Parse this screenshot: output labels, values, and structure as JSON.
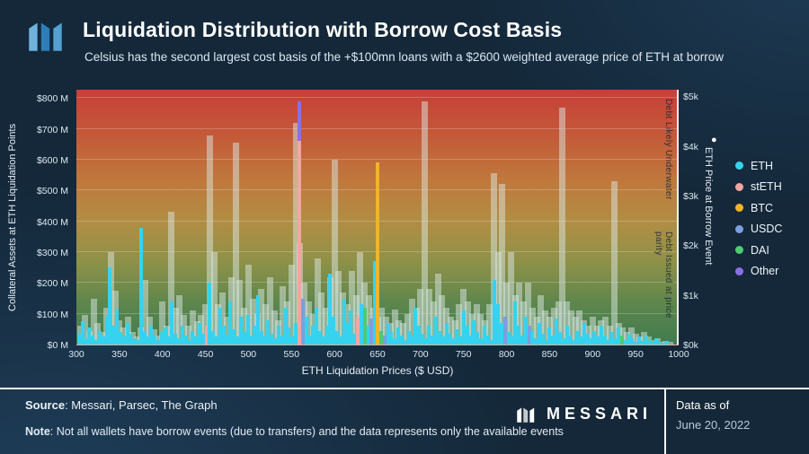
{
  "header": {
    "title": "Liquidation Distribution with Borrow Cost Basis",
    "subtitle": "Celsius has the second largest cost basis of the +$100mn loans with a $2600 weighted average price of ETH at borrow"
  },
  "chart_data": {
    "type": "bar",
    "xlabel": "ETH Liquidation Prices ($ USD)",
    "ylabel_left": "Collateral Assets at ETH Liquidation Points",
    "ylabel_right": "ETH Price at Borrow Event",
    "x_range": [
      300,
      1000
    ],
    "x_ticks": [
      300,
      350,
      400,
      450,
      500,
      550,
      600,
      650,
      700,
      750,
      800,
      850,
      900,
      950,
      1000
    ],
    "y_ticks_left": [
      "$0 M",
      "$100 M",
      "$200 M",
      "$300 M",
      "$400 M",
      "$500 M",
      "$600 M",
      "$700 M",
      "$800 M"
    ],
    "y_ticks_right": [
      "$0k",
      "$1k",
      "$2k",
      "$3k",
      "$4k",
      "$5k"
    ],
    "ylim_left": [
      0,
      830
    ],
    "ylim_right": [
      0,
      5.15
    ],
    "grid": true,
    "legend_position": "right",
    "legend_marker": "●",
    "annotations": {
      "top": "Debt Likely Underwater",
      "bottom": "Debt Issued at price parity"
    },
    "gradient": [
      "#c83f38",
      "#c0773c",
      "#b18e44",
      "#8d9148",
      "#417b4e"
    ],
    "series_colors": {
      "ETH": "#35d3ef",
      "stETH": "#f2a6a2",
      "BTC": "#f0b429",
      "USDC": "#7b9fe0",
      "DAI": "#4ecb71",
      "Other": "#8b6fe8"
    },
    "legend": [
      "ETH",
      "stETH",
      "BTC",
      "USDC",
      "DAI",
      "Other"
    ],
    "collateral_bars": [
      [
        305,
        60
      ],
      [
        310,
        95
      ],
      [
        315,
        45
      ],
      [
        320,
        150
      ],
      [
        325,
        70
      ],
      [
        330,
        40
      ],
      [
        335,
        120
      ],
      [
        340,
        300
      ],
      [
        345,
        175
      ],
      [
        350,
        80
      ],
      [
        355,
        55
      ],
      [
        360,
        90
      ],
      [
        365,
        40
      ],
      [
        370,
        25
      ],
      [
        375,
        55
      ],
      [
        380,
        210
      ],
      [
        385,
        90
      ],
      [
        390,
        50
      ],
      [
        395,
        30
      ],
      [
        400,
        140
      ],
      [
        405,
        60
      ],
      [
        410,
        430
      ],
      [
        415,
        120
      ],
      [
        420,
        160
      ],
      [
        425,
        95
      ],
      [
        430,
        60
      ],
      [
        435,
        110
      ],
      [
        440,
        75
      ],
      [
        445,
        95
      ],
      [
        450,
        130
      ],
      [
        455,
        680
      ],
      [
        460,
        300
      ],
      [
        465,
        130
      ],
      [
        470,
        170
      ],
      [
        475,
        90
      ],
      [
        480,
        220
      ],
      [
        485,
        655
      ],
      [
        490,
        210
      ],
      [
        495,
        120
      ],
      [
        500,
        260
      ],
      [
        505,
        150
      ],
      [
        510,
        100
      ],
      [
        515,
        180
      ],
      [
        520,
        130
      ],
      [
        525,
        220
      ],
      [
        530,
        110
      ],
      [
        535,
        80
      ],
      [
        540,
        190
      ],
      [
        545,
        140
      ],
      [
        550,
        260
      ],
      [
        555,
        720
      ],
      [
        560,
        330
      ],
      [
        565,
        200
      ],
      [
        570,
        140
      ],
      [
        575,
        100
      ],
      [
        580,
        280
      ],
      [
        585,
        170
      ],
      [
        590,
        120
      ],
      [
        595,
        220
      ],
      [
        600,
        600
      ],
      [
        605,
        240
      ],
      [
        610,
        170
      ],
      [
        615,
        130
      ],
      [
        620,
        240
      ],
      [
        625,
        160
      ],
      [
        630,
        300
      ],
      [
        635,
        200
      ],
      [
        640,
        160
      ],
      [
        645,
        120
      ],
      [
        650,
        90
      ],
      [
        655,
        120
      ],
      [
        660,
        90
      ],
      [
        665,
        70
      ],
      [
        670,
        115
      ],
      [
        675,
        80
      ],
      [
        680,
        70
      ],
      [
        685,
        100
      ],
      [
        690,
        150
      ],
      [
        695,
        120
      ],
      [
        700,
        180
      ],
      [
        705,
        790
      ],
      [
        710,
        180
      ],
      [
        715,
        140
      ],
      [
        720,
        230
      ],
      [
        725,
        160
      ],
      [
        730,
        120
      ],
      [
        735,
        90
      ],
      [
        740,
        80
      ],
      [
        745,
        130
      ],
      [
        750,
        180
      ],
      [
        755,
        140
      ],
      [
        760,
        100
      ],
      [
        765,
        130
      ],
      [
        770,
        100
      ],
      [
        775,
        80
      ],
      [
        780,
        130
      ],
      [
        785,
        555
      ],
      [
        790,
        300
      ],
      [
        795,
        520
      ],
      [
        800,
        200
      ],
      [
        805,
        300
      ],
      [
        810,
        160
      ],
      [
        815,
        200
      ],
      [
        820,
        140
      ],
      [
        825,
        200
      ],
      [
        830,
        120
      ],
      [
        835,
        90
      ],
      [
        840,
        160
      ],
      [
        845,
        110
      ],
      [
        850,
        90
      ],
      [
        855,
        120
      ],
      [
        860,
        140
      ],
      [
        865,
        770
      ],
      [
        870,
        140
      ],
      [
        875,
        110
      ],
      [
        880,
        90
      ],
      [
        885,
        110
      ],
      [
        890,
        80
      ],
      [
        895,
        60
      ],
      [
        900,
        90
      ],
      [
        905,
        60
      ],
      [
        910,
        80
      ],
      [
        915,
        90
      ],
      [
        920,
        60
      ],
      [
        925,
        530
      ],
      [
        930,
        70
      ],
      [
        935,
        55
      ],
      [
        940,
        40
      ],
      [
        945,
        55
      ],
      [
        950,
        35
      ],
      [
        955,
        25
      ],
      [
        960,
        40
      ],
      [
        965,
        25
      ],
      [
        970,
        15
      ],
      [
        975,
        20
      ],
      [
        980,
        10
      ],
      [
        985,
        12
      ],
      [
        990,
        8
      ]
    ],
    "event_bars": [
      [
        303,
        "ETH",
        35
      ],
      [
        307,
        "ETH",
        75
      ],
      [
        311,
        "ETH",
        20
      ],
      [
        315,
        "ETH",
        55
      ],
      [
        319,
        "ETH",
        30
      ],
      [
        323,
        "ETH",
        15
      ],
      [
        327,
        "ETH",
        45
      ],
      [
        331,
        "ETH",
        25
      ],
      [
        335,
        "ETH",
        90
      ],
      [
        339,
        "ETH",
        250
      ],
      [
        343,
        "ETH",
        60
      ],
      [
        347,
        "ETH",
        115
      ],
      [
        351,
        "ETH",
        40
      ],
      [
        355,
        "ETH",
        25
      ],
      [
        359,
        "ETH",
        70
      ],
      [
        363,
        "ETH",
        35
      ],
      [
        367,
        "ETH",
        20
      ],
      [
        371,
        "ETH",
        15
      ],
      [
        375,
        "ETH",
        380
      ],
      [
        379,
        "ETH",
        45
      ],
      [
        383,
        "ETH",
        25
      ],
      [
        387,
        "ETH",
        60
      ],
      [
        391,
        "ETH",
        30
      ],
      [
        395,
        "ETH",
        15
      ],
      [
        399,
        "ETH",
        40
      ],
      [
        403,
        "ETH",
        55
      ],
      [
        407,
        "ETH",
        25
      ],
      [
        411,
        "ETH",
        140
      ],
      [
        415,
        "ETH",
        35
      ],
      [
        419,
        "ETH",
        20
      ],
      [
        423,
        "ETH",
        60
      ],
      [
        427,
        "ETH",
        30
      ],
      [
        431,
        "ETH",
        15
      ],
      [
        435,
        "ETH",
        45
      ],
      [
        439,
        "ETH",
        25
      ],
      [
        443,
        "ETH",
        70
      ],
      [
        447,
        "ETH",
        35
      ],
      [
        451,
        "stETH",
        60
      ],
      [
        455,
        "ETH",
        200
      ],
      [
        459,
        "ETH",
        45
      ],
      [
        463,
        "ETH",
        25
      ],
      [
        467,
        "ETH",
        120
      ],
      [
        471,
        "ETH",
        60
      ],
      [
        475,
        "ETH",
        30
      ],
      [
        479,
        "ETH",
        140
      ],
      [
        483,
        "ETH",
        50
      ],
      [
        487,
        "ETH",
        25
      ],
      [
        491,
        "ETH",
        90
      ],
      [
        495,
        "ETH",
        40
      ],
      [
        499,
        "ETH",
        95
      ],
      [
        503,
        "ETH",
        30
      ],
      [
        507,
        "ETH",
        60
      ],
      [
        511,
        "ETH",
        160
      ],
      [
        515,
        "ETH",
        45
      ],
      [
        519,
        "ETH",
        25
      ],
      [
        523,
        "ETH",
        80
      ],
      [
        527,
        "ETH",
        35
      ],
      [
        531,
        "ETH",
        20
      ],
      [
        535,
        "ETH",
        60
      ],
      [
        539,
        "ETH",
        30
      ],
      [
        543,
        "ETH",
        120
      ],
      [
        547,
        "ETH",
        55
      ],
      [
        551,
        "ETH",
        25
      ],
      [
        555,
        "ETH",
        70
      ],
      [
        559,
        "stETH",
        660
      ],
      [
        559,
        "Other",
        130,
        660
      ],
      [
        563,
        "USDC",
        150
      ],
      [
        567,
        "ETH",
        90
      ],
      [
        571,
        "ETH",
        30
      ],
      [
        575,
        "ETH",
        60
      ],
      [
        579,
        "ETH",
        120
      ],
      [
        583,
        "ETH",
        45
      ],
      [
        587,
        "ETH",
        25
      ],
      [
        591,
        "ETH",
        60
      ],
      [
        595,
        "ETH",
        230
      ],
      [
        599,
        "ETH",
        90
      ],
      [
        603,
        "ETH",
        45
      ],
      [
        607,
        "ETH",
        25
      ],
      [
        611,
        "ETH",
        150
      ],
      [
        615,
        "ETH",
        70
      ],
      [
        619,
        "ETH",
        110
      ],
      [
        623,
        "ETH",
        35
      ],
      [
        627,
        "stETH",
        90
      ],
      [
        631,
        "ETH",
        130
      ],
      [
        635,
        "DAI",
        120
      ],
      [
        639,
        "ETH",
        60
      ],
      [
        643,
        "USDC",
        85
      ],
      [
        647,
        "ETH",
        270
      ],
      [
        650,
        "BTC",
        590
      ],
      [
        654,
        "DAI",
        45
      ],
      [
        658,
        "USDC",
        30
      ],
      [
        662,
        "ETH",
        70
      ],
      [
        666,
        "ETH",
        40
      ],
      [
        670,
        "ETH",
        20
      ],
      [
        674,
        "ETH",
        55
      ],
      [
        678,
        "ETH",
        30
      ],
      [
        682,
        "ETH",
        15
      ],
      [
        686,
        "ETH",
        45
      ],
      [
        690,
        "ETH",
        25
      ],
      [
        694,
        "ETH",
        120
      ],
      [
        698,
        "ETH",
        60
      ],
      [
        702,
        "ETH",
        35
      ],
      [
        706,
        "ETH",
        20
      ],
      [
        710,
        "ETH",
        60
      ],
      [
        714,
        "ETH",
        30
      ],
      [
        718,
        "ETH",
        90
      ],
      [
        722,
        "ETH",
        45
      ],
      [
        726,
        "ETH",
        25
      ],
      [
        730,
        "ETH",
        70
      ],
      [
        734,
        "ETH",
        35
      ],
      [
        738,
        "ETH",
        20
      ],
      [
        742,
        "ETH",
        50
      ],
      [
        746,
        "ETH",
        25
      ],
      [
        750,
        "ETH",
        110
      ],
      [
        754,
        "ETH",
        60
      ],
      [
        758,
        "ETH",
        30
      ],
      [
        762,
        "ETH",
        80
      ],
      [
        766,
        "ETH",
        40
      ],
      [
        770,
        "ETH",
        20
      ],
      [
        774,
        "ETH",
        60
      ],
      [
        778,
        "ETH",
        30
      ],
      [
        782,
        "ETH",
        15
      ],
      [
        786,
        "ETH",
        210
      ],
      [
        790,
        "ETH",
        130
      ],
      [
        794,
        "ETH",
        70
      ],
      [
        798,
        "USDC",
        90
      ],
      [
        802,
        "ETH",
        40
      ],
      [
        806,
        "ETH",
        25
      ],
      [
        810,
        "ETH",
        140
      ],
      [
        814,
        "ETH",
        60
      ],
      [
        818,
        "ETH",
        30
      ],
      [
        822,
        "ETH",
        90
      ],
      [
        826,
        "USDC",
        60
      ],
      [
        830,
        "ETH",
        45
      ],
      [
        834,
        "ETH",
        20
      ],
      [
        838,
        "ETH",
        70
      ],
      [
        842,
        "ETH",
        35
      ],
      [
        846,
        "ETH",
        15
      ],
      [
        850,
        "ETH",
        55
      ],
      [
        854,
        "ETH",
        30
      ],
      [
        858,
        "ETH",
        85
      ],
      [
        862,
        "ETH",
        40
      ],
      [
        866,
        "ETH",
        20
      ],
      [
        870,
        "ETH",
        60
      ],
      [
        874,
        "ETH",
        30
      ],
      [
        878,
        "ETH",
        15
      ],
      [
        882,
        "ETH",
        45
      ],
      [
        886,
        "ETH",
        25
      ],
      [
        890,
        "ETH",
        70
      ],
      [
        894,
        "ETH",
        35
      ],
      [
        898,
        "ETH",
        20
      ],
      [
        902,
        "ETH",
        45
      ],
      [
        906,
        "ETH",
        25
      ],
      [
        910,
        "ETH",
        60
      ],
      [
        914,
        "ETH",
        30
      ],
      [
        918,
        "ETH",
        15
      ],
      [
        922,
        "ETH",
        40
      ],
      [
        926,
        "ETH",
        20
      ],
      [
        930,
        "ETH",
        55
      ],
      [
        934,
        "DAI",
        30
      ],
      [
        938,
        "ETH",
        15
      ],
      [
        942,
        "ETH",
        35
      ],
      [
        946,
        "ETH",
        20
      ],
      [
        950,
        "ETH",
        10
      ],
      [
        954,
        "ETH",
        25
      ],
      [
        958,
        "ETH",
        12
      ],
      [
        962,
        "ETH",
        30
      ],
      [
        966,
        "ETH",
        15
      ],
      [
        970,
        "ETH",
        8
      ],
      [
        974,
        "ETH",
        20
      ],
      [
        978,
        "ETH",
        10
      ],
      [
        982,
        "ETH",
        5
      ],
      [
        986,
        "ETH",
        12
      ]
    ]
  },
  "footer": {
    "source_label": "Source",
    "source_text": ": Messari, Parsec, The Graph",
    "note_label": "Note",
    "note_text": ": Not all wallets have borrow events (due to transfers) and the data represents only the available events",
    "brand": "MESSARI",
    "data_as_of_label": "Data as of",
    "data_as_of_date": "June 20, 2022"
  }
}
